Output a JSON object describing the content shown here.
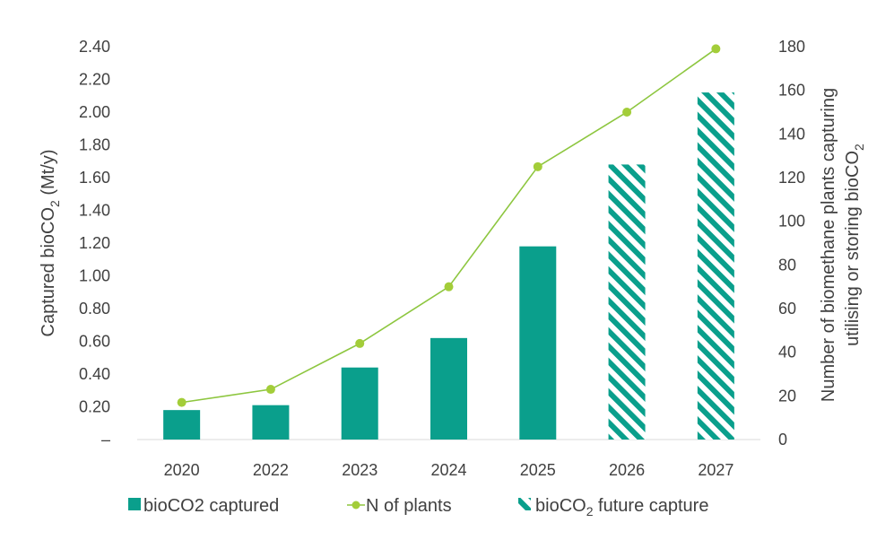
{
  "chart_data": {
    "type": "bar",
    "categories": [
      "2020",
      "2022",
      "2023",
      "2024",
      "2025",
      "2026",
      "2027"
    ],
    "series": [
      {
        "name": "bioCO2 captured",
        "type": "bar",
        "axis": "left",
        "values": [
          0.18,
          0.21,
          0.44,
          0.62,
          1.18,
          null,
          null
        ],
        "color": "#0a9f8c"
      },
      {
        "name": "bioCO2 future capture",
        "type": "bar-hatched",
        "axis": "left",
        "values": [
          null,
          null,
          null,
          null,
          null,
          1.68,
          2.12
        ],
        "color": "#0a9f8c"
      },
      {
        "name": "N of plants",
        "type": "line",
        "axis": "right",
        "values": [
          17,
          23,
          44,
          70,
          125,
          150,
          179
        ],
        "color": "#8dc63f"
      }
    ],
    "ylabel_left": "Captured bioCO2 (Mt/y)",
    "ylabel_right": [
      "Number of biomethane plants capturing",
      "utilising or storing bioCO2"
    ],
    "yticks_left": [
      "–",
      "0.20",
      "0.40",
      "0.60",
      "0.80",
      "1.00",
      "1.20",
      "1.40",
      "1.60",
      "1.80",
      "2.00",
      "2.20",
      "2.40"
    ],
    "yticks_right": [
      "0",
      "20",
      "40",
      "60",
      "80",
      "100",
      "120",
      "140",
      "160",
      "180"
    ],
    "ylim_left": [
      0,
      2.4
    ],
    "ylim_right": [
      0,
      180
    ],
    "grid": false,
    "legend": {
      "placement": "bottom",
      "items": [
        "bioCO2 captured",
        "N of plants",
        "bioCO2 future capture"
      ]
    }
  }
}
